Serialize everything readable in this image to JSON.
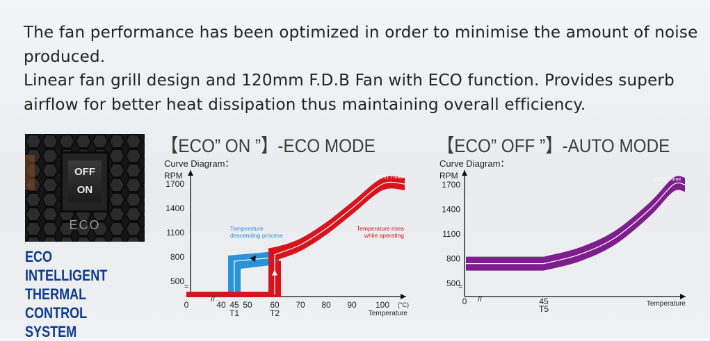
{
  "intro": {
    "line1": "The fan performance has been optimized in order to minimise the amount of noise produced.",
    "line2": "Linear fan grill design and 120mm F.D.B Fan with ECO function. Provides superb airflow for better heat dissipation thus maintaining overall efficiency."
  },
  "switch_photo": {
    "off_label": "OFF",
    "on_label": "ON",
    "eco_label": "ECO"
  },
  "eco_system": {
    "line1": "ECO INTELLIGENT",
    "line2": "THERMAL",
    "line3": "CONTROL SYSTEM"
  },
  "colors": {
    "accent_blue": "#0d3b91",
    "curve_blue": "#2a93d5",
    "curve_red": "#d7141e",
    "curve_purple": "#7d1e8c"
  },
  "chart_data": [
    {
      "type": "line",
      "title": "【ECO” ON ”】-ECO MODE",
      "subtitle": "Curve Diagram：",
      "ylabel": "RPM",
      "xlabel": "Temperature",
      "x_unit": "(°C)",
      "y_ticks": [
        "1700",
        "1400",
        "1100",
        "800",
        "500"
      ],
      "x_ticks": [
        "0",
        "40",
        "45",
        "50",
        "60",
        "70",
        "80",
        "90",
        "100"
      ],
      "x_sub_labels": [
        {
          "at": "45",
          "text": "T1"
        },
        {
          "at": "60",
          "text": "T2"
        }
      ],
      "tmax_label": "(12V)  Tmax",
      "annotations": [
        {
          "text": "Temperature descending process",
          "line1": "Temperature",
          "line2": "descending process",
          "color": "#2a93d5"
        },
        {
          "text": "Temperature rises while operating",
          "line1": "Temperature rises",
          "line2": "while operating",
          "color": "#d7141e"
        }
      ],
      "series": [
        {
          "role": "rising",
          "color": "#d7141e",
          "x": [
            0,
            60,
            60,
            70,
            80,
            90,
            100,
            105
          ],
          "y": [
            390,
            390,
            830,
            950,
            1150,
            1400,
            1700,
            1700
          ]
        },
        {
          "role": "descending",
          "color": "#2a93d5",
          "x": [
            0,
            45,
            45,
            60
          ],
          "y": [
            390,
            390,
            800,
            830
          ]
        }
      ]
    },
    {
      "type": "line",
      "title": "【ECO” OFF ”】-AUTO MODE",
      "subtitle": "Curve Diagram：",
      "ylabel": "RPM",
      "xlabel": "Temperature",
      "y_ticks": [
        "1700",
        "1400",
        "1100",
        "800",
        "500"
      ],
      "x_ticks": [
        "0",
        "45"
      ],
      "x_sub_labels": [
        {
          "at": "45",
          "text": "T5"
        }
      ],
      "tmax_label": "(12V)  Tmax",
      "series": [
        {
          "role": "auto",
          "color": "#7d1e8c",
          "x": [
            0,
            45,
            60,
            75,
            90,
            100,
            105
          ],
          "y": [
            740,
            740,
            850,
            1050,
            1400,
            1700,
            1700
          ]
        }
      ]
    }
  ]
}
